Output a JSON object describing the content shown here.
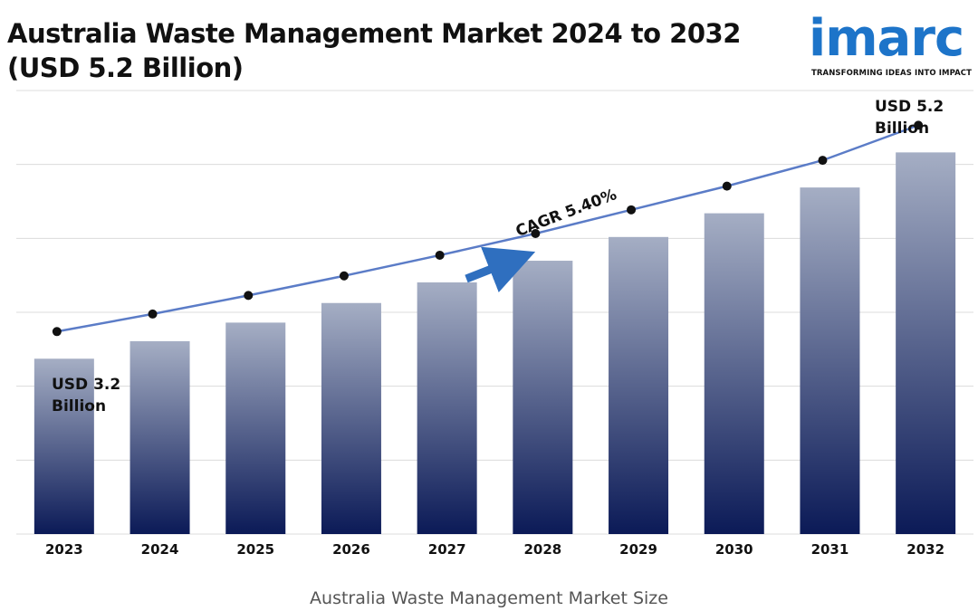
{
  "title": {
    "line1": "Australia Waste Management Market 2024 to 2032",
    "line2": "(USD 5.2 Billion)"
  },
  "logo": {
    "word": "imarc",
    "tagline": "TRANSFORMING IDEAS INTO IMPACT",
    "color": "#1d74c9"
  },
  "annotations": {
    "start_line1": "USD 3.2",
    "start_line2": "Billion",
    "end_line1": "USD 5.2",
    "end_line2": "Billion",
    "cagr": "CAGR 5.40%"
  },
  "caption": "Australia Waste Management Market Size",
  "chart_data": {
    "type": "bar",
    "categories": [
      "2023",
      "2024",
      "2025",
      "2026",
      "2027",
      "2028",
      "2029",
      "2030",
      "2031",
      "2032"
    ],
    "values": [
      3.2,
      3.37,
      3.55,
      3.74,
      3.94,
      4.15,
      4.38,
      4.61,
      4.86,
      5.2
    ],
    "trend_line": true,
    "ylim": [
      1.5,
      5.8
    ],
    "grid": true,
    "xlabel": "Australia Waste Management Market Size",
    "ylabel": "",
    "bar_gradient": [
      "#a5aec4",
      "#0b1a57"
    ],
    "line_color": "#5b7cc7",
    "arrow_color": "#2f6fbf"
  }
}
